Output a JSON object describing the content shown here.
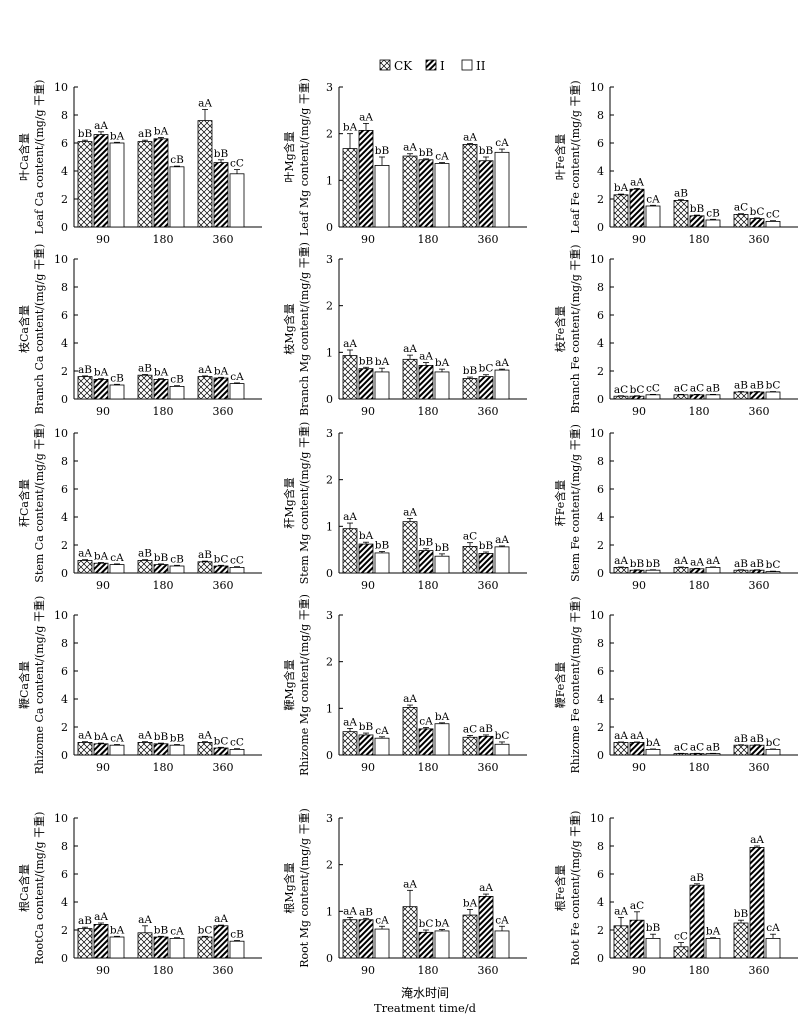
{
  "legend": {
    "items": [
      "CK",
      "I",
      "II"
    ]
  },
  "x_axis": {
    "label_cn": "淹水时间",
    "label_en": "Treatment time/d"
  },
  "chart_data": [
    {
      "type": "bar",
      "row": 0,
      "col": 0,
      "ylabel_cn": "叶Ca含量",
      "ylabel_en": "Leaf Ca content/(mg/g 干重)",
      "ylim": [
        0,
        10
      ],
      "yticks": [
        0,
        2,
        4,
        6,
        8,
        10
      ],
      "categories": [
        "90",
        "180",
        "360"
      ],
      "series": [
        {
          "name": "CK",
          "values": [
            6.1,
            6.1,
            7.6
          ],
          "errors": [
            0.1,
            0.1,
            0.8
          ],
          "labels": [
            "bB",
            "aB",
            "aA"
          ]
        },
        {
          "name": "I",
          "values": [
            6.6,
            6.3,
            4.6
          ],
          "errors": [
            0.2,
            0.1,
            0.2
          ],
          "labels": [
            "aA",
            "bA",
            "bB"
          ]
        },
        {
          "name": "II",
          "values": [
            6.0,
            4.3,
            3.8
          ],
          "errors": [
            0.05,
            0.05,
            0.3
          ],
          "labels": [
            "bA",
            "cB",
            "cC"
          ]
        }
      ]
    },
    {
      "type": "bar",
      "row": 0,
      "col": 1,
      "ylabel_cn": "叶Mg含量",
      "ylabel_en": "Leaf Mg content/(mg/g 干重)",
      "ylim": [
        0,
        3
      ],
      "yticks": [
        0,
        1,
        2,
        3
      ],
      "categories": [
        "90",
        "180",
        "360"
      ],
      "series": [
        {
          "name": "CK",
          "values": [
            1.68,
            1.52,
            1.77
          ],
          "errors": [
            0.32,
            0.05,
            0.02
          ],
          "labels": [
            "bA",
            "aA",
            "aA"
          ]
        },
        {
          "name": "I",
          "values": [
            2.07,
            1.44,
            1.42
          ],
          "errors": [
            0.15,
            0.02,
            0.08
          ],
          "labels": [
            "aA",
            "bB",
            "bB"
          ]
        },
        {
          "name": "II",
          "values": [
            1.32,
            1.36,
            1.6
          ],
          "errors": [
            0.18,
            0.02,
            0.07
          ],
          "labels": [
            "bB",
            "cA",
            "cA"
          ]
        }
      ]
    },
    {
      "type": "bar",
      "row": 0,
      "col": 2,
      "ylabel_cn": "叶Fe含量",
      "ylabel_en": "Leaf Fe content/(mg/g 干重)",
      "ylim": [
        0,
        10
      ],
      "yticks": [
        0,
        2,
        4,
        6,
        8,
        10
      ],
      "categories": [
        "90",
        "180",
        "360"
      ],
      "series": [
        {
          "name": "CK",
          "values": [
            2.3,
            1.9,
            0.9
          ],
          "errors": [
            0.05,
            0.05,
            0.05
          ],
          "labels": [
            "bA",
            "aB",
            "aC"
          ]
        },
        {
          "name": "I",
          "values": [
            2.7,
            0.8,
            0.6
          ],
          "errors": [
            0.05,
            0.05,
            0.05
          ],
          "labels": [
            "aA",
            "bB",
            "bC"
          ]
        },
        {
          "name": "II",
          "values": [
            1.5,
            0.5,
            0.4
          ],
          "errors": [
            0.05,
            0.05,
            0.05
          ],
          "labels": [
            "cA",
            "cB",
            "cC"
          ]
        }
      ]
    },
    {
      "type": "bar",
      "row": 1,
      "col": 0,
      "ylabel_cn": "枝Ca含量",
      "ylabel_en": "Branch Ca content/(mg/g 干重)",
      "ylim": [
        0,
        10
      ],
      "yticks": [
        0,
        2,
        4,
        6,
        8,
        10
      ],
      "categories": [
        "90",
        "180",
        "360"
      ],
      "series": [
        {
          "name": "CK",
          "values": [
            1.6,
            1.7,
            1.6
          ],
          "errors": [
            0.05,
            0.05,
            0.05
          ],
          "labels": [
            "aB",
            "aB",
            "aA"
          ]
        },
        {
          "name": "I",
          "values": [
            1.4,
            1.4,
            1.5
          ],
          "errors": [
            0.05,
            0.05,
            0.05
          ],
          "labels": [
            "bA",
            "bA",
            "bA"
          ]
        },
        {
          "name": "II",
          "values": [
            1.0,
            0.9,
            1.1
          ],
          "errors": [
            0.05,
            0.05,
            0.05
          ],
          "labels": [
            "cB",
            "cB",
            "cA"
          ]
        }
      ]
    },
    {
      "type": "bar",
      "row": 1,
      "col": 1,
      "ylabel_cn": "枝Mg含量",
      "ylabel_en": "Branch Mg content/(mg/g 干重)",
      "ylim": [
        0,
        3
      ],
      "yticks": [
        0,
        1,
        2,
        3
      ],
      "categories": [
        "90",
        "180",
        "360"
      ],
      "series": [
        {
          "name": "CK",
          "values": [
            0.93,
            0.85,
            0.44
          ],
          "errors": [
            0.12,
            0.09,
            0.03
          ],
          "labels": [
            "aA",
            "aA",
            "bB"
          ]
        },
        {
          "name": "I",
          "values": [
            0.65,
            0.72,
            0.48
          ],
          "errors": [
            0.03,
            0.06,
            0.04
          ],
          "labels": [
            "bB",
            "aA",
            "bC"
          ]
        },
        {
          "name": "II",
          "values": [
            0.58,
            0.58,
            0.62
          ],
          "errors": [
            0.08,
            0.06,
            0.02
          ],
          "labels": [
            "bA",
            "bA",
            "aA"
          ]
        }
      ]
    },
    {
      "type": "bar",
      "row": 1,
      "col": 2,
      "ylabel_cn": "枝Fe含量",
      "ylabel_en": "Branch Fe content/(mg/g 干重)",
      "ylim": [
        0,
        10
      ],
      "yticks": [
        0,
        2,
        4,
        6,
        8,
        10
      ],
      "categories": [
        "90",
        "180",
        "360"
      ],
      "series": [
        {
          "name": "CK",
          "values": [
            0.2,
            0.3,
            0.5
          ],
          "errors": [
            0.03,
            0.03,
            0.03
          ],
          "labels": [
            "aC",
            "aC",
            "aB"
          ]
        },
        {
          "name": "I",
          "values": [
            0.2,
            0.3,
            0.5
          ],
          "errors": [
            0.03,
            0.03,
            0.03
          ],
          "labels": [
            "bC",
            "aC",
            "aB"
          ]
        },
        {
          "name": "II",
          "values": [
            0.3,
            0.3,
            0.5
          ],
          "errors": [
            0.03,
            0.03,
            0.03
          ],
          "labels": [
            "cC",
            "aB",
            "bC"
          ]
        }
      ]
    },
    {
      "type": "bar",
      "row": 2,
      "col": 0,
      "ylabel_cn": "秆Ca含量",
      "ylabel_en": "Stem Ca content/(mg/g 干重)",
      "ylim": [
        0,
        10
      ],
      "yticks": [
        0,
        2,
        4,
        6,
        8,
        10
      ],
      "categories": [
        "90",
        "180",
        "360"
      ],
      "series": [
        {
          "name": "CK",
          "values": [
            0.9,
            0.9,
            0.8
          ],
          "errors": [
            0.05,
            0.05,
            0.05
          ],
          "labels": [
            "aA",
            "aB",
            "aB"
          ]
        },
        {
          "name": "I",
          "values": [
            0.7,
            0.6,
            0.5
          ],
          "errors": [
            0.05,
            0.05,
            0.05
          ],
          "labels": [
            "bA",
            "bB",
            "bC"
          ]
        },
        {
          "name": "II",
          "values": [
            0.6,
            0.5,
            0.4
          ],
          "errors": [
            0.05,
            0.05,
            0.05
          ],
          "labels": [
            "cA",
            "cB",
            "cC"
          ]
        }
      ]
    },
    {
      "type": "bar",
      "row": 2,
      "col": 1,
      "ylabel_cn": "秆Mg含量",
      "ylabel_en": "Stem Mg content/(mg/g 干重)",
      "ylim": [
        0,
        3
      ],
      "yticks": [
        0,
        1,
        2,
        3
      ],
      "categories": [
        "90",
        "180",
        "360"
      ],
      "series": [
        {
          "name": "CK",
          "values": [
            0.95,
            1.1,
            0.57
          ],
          "errors": [
            0.12,
            0.07,
            0.08
          ],
          "labels": [
            "aA",
            "aA",
            "aC"
          ]
        },
        {
          "name": "I",
          "values": [
            0.62,
            0.48,
            0.42
          ],
          "errors": [
            0.04,
            0.04,
            0.03
          ],
          "labels": [
            "bA",
            "bB",
            "bB"
          ]
        },
        {
          "name": "II",
          "values": [
            0.43,
            0.36,
            0.56
          ],
          "errors": [
            0.03,
            0.05,
            0.02
          ],
          "labels": [
            "bB",
            "bB",
            "aA"
          ]
        }
      ]
    },
    {
      "type": "bar",
      "row": 2,
      "col": 2,
      "ylabel_cn": "秆Fe含量",
      "ylabel_en": "Stem Fe content/(mg/g 干重)",
      "ylim": [
        0,
        10
      ],
      "yticks": [
        0,
        2,
        4,
        6,
        8,
        10
      ],
      "categories": [
        "90",
        "180",
        "360"
      ],
      "series": [
        {
          "name": "CK",
          "values": [
            0.4,
            0.4,
            0.2
          ],
          "errors": [
            0.03,
            0.03,
            0.03
          ],
          "labels": [
            "aA",
            "aA",
            "aB"
          ]
        },
        {
          "name": "I",
          "values": [
            0.2,
            0.3,
            0.2
          ],
          "errors": [
            0.03,
            0.03,
            0.03
          ],
          "labels": [
            "bB",
            "aA",
            "aB"
          ]
        },
        {
          "name": "II",
          "values": [
            0.2,
            0.4,
            0.1
          ],
          "errors": [
            0.03,
            0.03,
            0.03
          ],
          "labels": [
            "bB",
            "aA",
            "bC"
          ]
        }
      ]
    },
    {
      "type": "bar",
      "row": 3,
      "col": 0,
      "ylabel_cn": "鞭Ca含量",
      "ylabel_en": "Rhizome Ca content/(mg/g 干重)",
      "ylim": [
        0,
        10
      ],
      "yticks": [
        0,
        2,
        4,
        6,
        8,
        10
      ],
      "categories": [
        "90",
        "180",
        "360"
      ],
      "series": [
        {
          "name": "CK",
          "values": [
            0.9,
            0.9,
            0.9
          ],
          "errors": [
            0.05,
            0.05,
            0.05
          ],
          "labels": [
            "aA",
            "aA",
            "aA"
          ]
        },
        {
          "name": "I",
          "values": [
            0.8,
            0.8,
            0.5
          ],
          "errors": [
            0.05,
            0.05,
            0.05
          ],
          "labels": [
            "bA",
            "bB",
            "bC"
          ]
        },
        {
          "name": "II",
          "values": [
            0.7,
            0.7,
            0.4
          ],
          "errors": [
            0.05,
            0.05,
            0.05
          ],
          "labels": [
            "cA",
            "bB",
            "cC"
          ]
        }
      ]
    },
    {
      "type": "bar",
      "row": 3,
      "col": 1,
      "ylabel_cn": "鞭Mg含量",
      "ylabel_en": "Rhizome Mg content/(mg/g 干重)",
      "ylim": [
        0,
        3
      ],
      "yticks": [
        0,
        1,
        2,
        3
      ],
      "categories": [
        "90",
        "180",
        "360"
      ],
      "series": [
        {
          "name": "CK",
          "values": [
            0.5,
            1.02,
            0.38
          ],
          "errors": [
            0.07,
            0.05,
            0.04
          ],
          "labels": [
            "aA",
            "aA",
            "aC"
          ]
        },
        {
          "name": "I",
          "values": [
            0.43,
            0.56,
            0.4
          ],
          "errors": [
            0.04,
            0.03,
            0.03
          ],
          "labels": [
            "bB",
            "cA",
            "aB"
          ]
        },
        {
          "name": "II",
          "values": [
            0.36,
            0.67,
            0.23
          ],
          "errors": [
            0.03,
            0.02,
            0.05
          ],
          "labels": [
            "cA",
            "bA",
            "bC"
          ]
        }
      ]
    },
    {
      "type": "bar",
      "row": 3,
      "col": 2,
      "ylabel_cn": "鞭Fe含量",
      "ylabel_en": "Rhizome Fe content/(mg/g 干重)",
      "ylim": [
        0,
        10
      ],
      "yticks": [
        0,
        2,
        4,
        6,
        8,
        10
      ],
      "categories": [
        "90",
        "180",
        "360"
      ],
      "series": [
        {
          "name": "CK",
          "values": [
            0.9,
            0.1,
            0.7
          ],
          "errors": [
            0.03,
            0.02,
            0.03
          ],
          "labels": [
            "aA",
            "aC",
            "aB"
          ]
        },
        {
          "name": "I",
          "values": [
            0.9,
            0.1,
            0.7
          ],
          "errors": [
            0.03,
            0.02,
            0.03
          ],
          "labels": [
            "aA",
            "aC",
            "aB"
          ]
        },
        {
          "name": "II",
          "values": [
            0.4,
            0.1,
            0.4
          ],
          "errors": [
            0.03,
            0.02,
            0.03
          ],
          "labels": [
            "bA",
            "aB",
            "bC"
          ]
        }
      ]
    },
    {
      "type": "bar",
      "row": 4,
      "col": 0,
      "ylabel_cn": "根Ca含量",
      "ylabel_en": "RootCa content/(mg/g 干重)",
      "ylim": [
        0,
        10
      ],
      "yticks": [
        0,
        2,
        4,
        6,
        8,
        10
      ],
      "categories": [
        "90",
        "180",
        "360"
      ],
      "series": [
        {
          "name": "CK",
          "values": [
            2.1,
            1.8,
            1.5
          ],
          "errors": [
            0.1,
            0.5,
            0.05
          ],
          "labels": [
            "aB",
            "aA",
            "bC"
          ]
        },
        {
          "name": "I",
          "values": [
            2.4,
            1.5,
            2.3
          ],
          "errors": [
            0.1,
            0.05,
            0.05
          ],
          "labels": [
            "aA",
            "bB",
            "aA"
          ]
        },
        {
          "name": "II",
          "values": [
            1.5,
            1.4,
            1.2
          ],
          "errors": [
            0.05,
            0.05,
            0.05
          ],
          "labels": [
            "bA",
            "cA",
            "cB"
          ]
        }
      ]
    },
    {
      "type": "bar",
      "row": 4,
      "col": 1,
      "ylabel_cn": "根Mg含量",
      "ylabel_en": "Root Mg content/(mg/g 干重)",
      "ylim": [
        0,
        3
      ],
      "yticks": [
        0,
        1,
        2,
        3
      ],
      "categories": [
        "90",
        "180",
        "360"
      ],
      "series": [
        {
          "name": "CK",
          "values": [
            0.82,
            1.1,
            0.92
          ],
          "errors": [
            0.05,
            0.35,
            0.12
          ],
          "labels": [
            "aA",
            "aA",
            "bA"
          ]
        },
        {
          "name": "I",
          "values": [
            0.82,
            0.55,
            1.32
          ],
          "errors": [
            0.03,
            0.05,
            0.05
          ],
          "labels": [
            "aB",
            "bC",
            "aA"
          ]
        },
        {
          "name": "II",
          "values": [
            0.62,
            0.58,
            0.58
          ],
          "errors": [
            0.06,
            0.03,
            0.1
          ],
          "labels": [
            "cA",
            "bA",
            "cA"
          ]
        }
      ]
    },
    {
      "type": "bar",
      "row": 4,
      "col": 2,
      "ylabel_cn": "根Fe含量",
      "ylabel_en": "Root Fe content/(mg/g 干重)",
      "ylim": [
        0,
        10
      ],
      "yticks": [
        0,
        2,
        4,
        6,
        8,
        10
      ],
      "categories": [
        "90",
        "180",
        "360"
      ],
      "series": [
        {
          "name": "CK",
          "values": [
            2.3,
            0.8,
            2.5
          ],
          "errors": [
            0.6,
            0.3,
            0.2
          ],
          "labels": [
            "aA",
            "cC",
            "bB"
          ]
        },
        {
          "name": "I",
          "values": [
            2.7,
            5.2,
            7.9
          ],
          "errors": [
            0.6,
            0.1,
            0.1
          ],
          "labels": [
            "aC",
            "aB",
            "aA"
          ]
        },
        {
          "name": "II",
          "values": [
            1.4,
            1.4,
            1.4
          ],
          "errors": [
            0.3,
            0.05,
            0.3
          ],
          "labels": [
            "bB",
            "bA",
            "cA"
          ]
        }
      ]
    }
  ]
}
